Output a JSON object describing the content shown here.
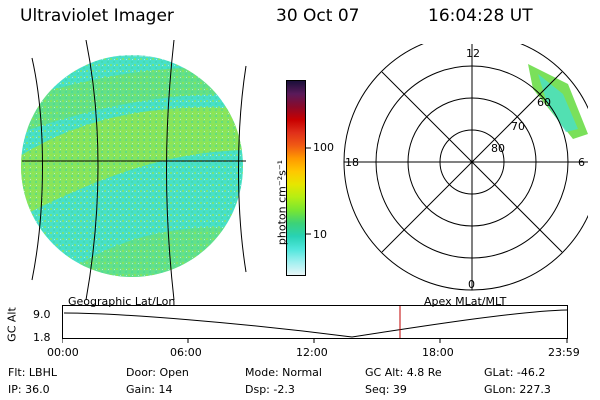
{
  "header": {
    "instrument": "Ultraviolet Imager",
    "date": "30 Oct 07",
    "time": "16:04:28 UT"
  },
  "colorbar": {
    "unit_label": "photon cm⁻²s⁻¹",
    "ticks": [
      "100",
      "10"
    ],
    "colors": [
      "#1a0f3a",
      "#5a1a5a",
      "#8a0a2a",
      "#c80000",
      "#e0301a",
      "#f05a14",
      "#ff9a00",
      "#ffc800",
      "#e6e600",
      "#b4ee14",
      "#78e632",
      "#3cd278",
      "#28d2b4",
      "#50e6dc",
      "#a0f0f0",
      "#e8f6f8"
    ]
  },
  "left_panel": {
    "label": "Geographic Lat/Lon",
    "emission_colors": [
      "#3cd8a0",
      "#48e0c8",
      "#7ae05a",
      "#9be63c",
      "#aaf0e8"
    ]
  },
  "right_panel": {
    "label": "Apex MLat/MLT",
    "mlt_labels": {
      "top": "12",
      "bottom": "0",
      "left": "18",
      "right": "6"
    },
    "lat_labels": [
      "60",
      "70",
      "80"
    ]
  },
  "altitude_plot": {
    "ylabel": "GC Alt",
    "yticks": [
      "9.0",
      "1.8"
    ],
    "xticks": [
      "00:00",
      "06:00",
      "12:00",
      "18:00",
      "23:59"
    ],
    "marker_color": "#c00000"
  },
  "info": {
    "filter": "Flt:  LBHL",
    "ip": "IP:  36.0",
    "door": "Door:  Open",
    "gain": "Gain:  14",
    "mode": "Mode:  Normal",
    "dsp": "Dsp:     -2.3",
    "gc_alt": "GC Alt:  4.8 Re",
    "seq": "Seq:  39",
    "glat": "GLat:  -46.2",
    "glon": "GLon:  227.3"
  }
}
